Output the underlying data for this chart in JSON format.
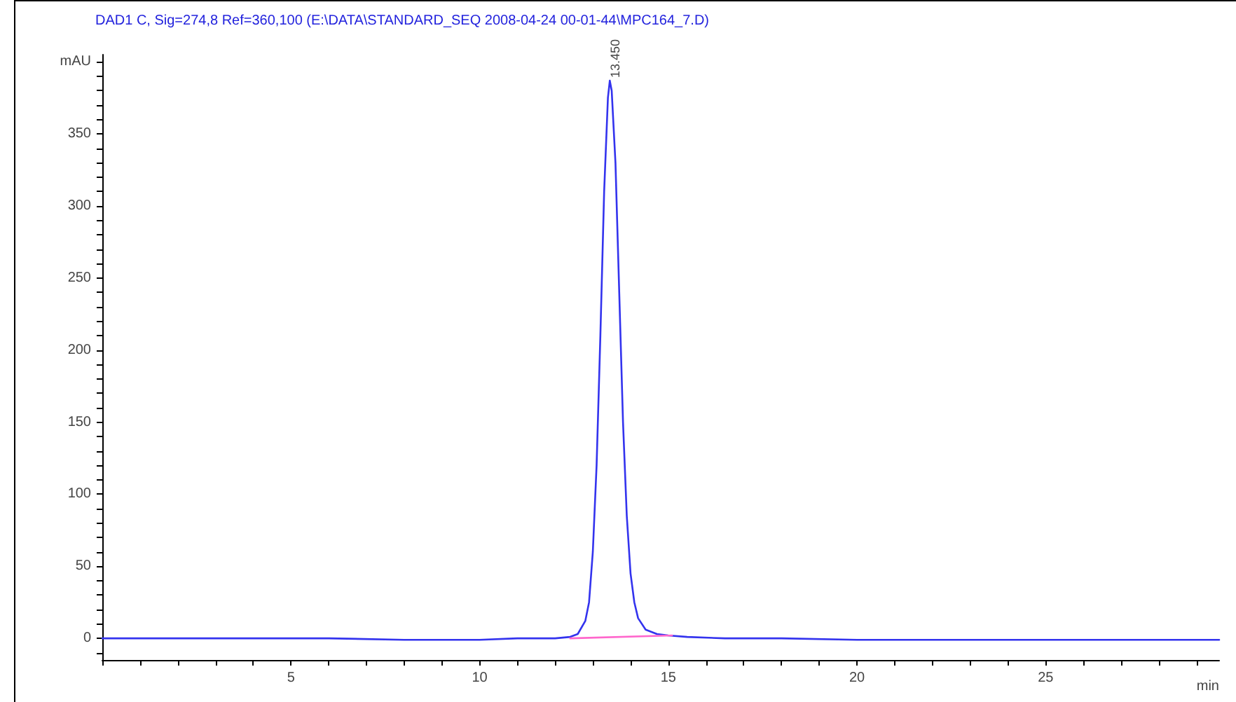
{
  "chart_data": {
    "type": "line",
    "title": "DAD1 C, Sig=274,8 Ref=360,100 (E:\\DATA\\STANDARD_SEQ 2008-04-24 00-01-44\\MPC164_7.D)",
    "xlabel": "min",
    "xlim": [
      0,
      29.6
    ],
    "xticks": [
      5,
      10,
      15,
      20,
      25
    ],
    "ylim": [
      -15,
      405
    ],
    "yticks": [
      0,
      50,
      100,
      150,
      200,
      250,
      300,
      350,
      {
        "value": 400,
        "label": "mAU"
      }
    ],
    "grid": false,
    "marker": "none",
    "line_style": "solid",
    "series": [
      {
        "color": "#3333ee",
        "x": [
          0,
          2,
          4,
          6,
          8,
          10,
          11,
          12,
          12.4,
          12.6,
          12.8,
          12.9,
          13.0,
          13.1,
          13.2,
          13.3,
          13.4,
          13.45,
          13.5,
          13.6,
          13.7,
          13.8,
          13.9,
          14.0,
          14.1,
          14.2,
          14.4,
          14.7,
          15.0,
          15.5,
          16.5,
          18,
          20,
          22,
          25,
          28,
          29.6
        ],
        "values": [
          0,
          0,
          0,
          0,
          -1,
          -1,
          0,
          0,
          1,
          3,
          12,
          25,
          60,
          120,
          210,
          310,
          375,
          387,
          380,
          330,
          240,
          150,
          85,
          45,
          25,
          14,
          6,
          3,
          2,
          1,
          0,
          0,
          -1,
          -1,
          -1,
          -1,
          -1
        ]
      },
      {
        "color": "#ff66cc",
        "x": [
          12.4,
          15.1
        ],
        "values": [
          0,
          2
        ]
      }
    ],
    "annotations": [
      {
        "text": "13.450",
        "x": 13.45,
        "y": 387
      }
    ]
  }
}
